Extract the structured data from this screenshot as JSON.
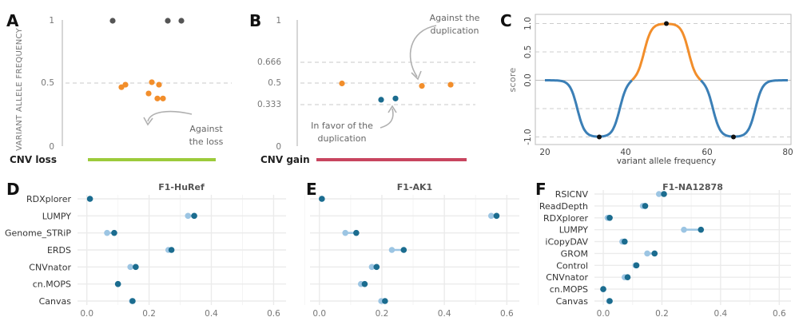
{
  "panel_labels": [
    "A",
    "B",
    "C",
    "D",
    "E",
    "F"
  ],
  "colors": {
    "orange": "#F28E2B",
    "gray_dot": "#555555",
    "green_bar": "#9CCB3B",
    "red_bar": "#C8455F",
    "blue_curve": "#3B7FB6",
    "dark_blue": "#1B6C8F",
    "light_blue": "#9CC5E3"
  },
  "panel_a": {
    "ylabel": "VARIANT ALLELE FREQUENCY",
    "ticks": [
      "1",
      "0.5",
      "0"
    ],
    "annotation": [
      "Against",
      "the loss"
    ],
    "bar_label": "CNV loss"
  },
  "panel_b": {
    "ticks": [
      "1",
      "0.666",
      "0.5",
      "0.333",
      "0"
    ],
    "annotation_top": [
      "Against the",
      "duplication"
    ],
    "annotation_bottom": [
      "In favor of the",
      "duplication"
    ],
    "bar_label": "CNV gain"
  },
  "panel_c": {
    "ylabel": "score",
    "xlabel": "variant allele frequency",
    "yticks": [
      "1.0",
      "0.5",
      "0.0",
      "-1.0"
    ],
    "xticks": [
      "20",
      "40",
      "60",
      "80"
    ]
  },
  "chart_data": [
    {
      "panel": "A",
      "type": "scatter",
      "ylim": [
        0,
        1
      ],
      "series": [
        {
          "color": "gray",
          "y": [
            1,
            1,
            1
          ]
        },
        {
          "color": "orange",
          "y": [
            0.47,
            0.49,
            0.51,
            0.49,
            0.42,
            0.38,
            0.38
          ]
        }
      ]
    },
    {
      "panel": "B",
      "type": "scatter",
      "ylim": [
        0,
        1
      ],
      "series": [
        {
          "color": "orange",
          "y": [
            0.5,
            0.48,
            0.49
          ]
        },
        {
          "color": "blue",
          "y": [
            0.37,
            0.38
          ]
        }
      ]
    },
    {
      "panel": "C",
      "type": "line",
      "xlim": [
        18,
        82
      ],
      "ylim": [
        -1.05,
        1.05
      ],
      "description_points": {
        "x": [
          33.3,
          50,
          66.7
        ],
        "y": [
          -1,
          1,
          -1
        ]
      }
    },
    {
      "panel": "D",
      "type": "dumbbell",
      "title": "F1-HuRef",
      "xlim": [
        -0.03,
        0.64
      ],
      "xticks": [
        "0.0",
        "0.2",
        "0.4",
        "0.6"
      ],
      "categories": [
        "RDXplorer",
        "LUMPY",
        "Genome_STRiP",
        "ERDS",
        "CNVnator",
        "cn.MOPS",
        "Canvas"
      ],
      "series": [
        {
          "color": "light",
          "values": [
            0.01,
            0.325,
            0.065,
            0.262,
            0.14,
            0.1,
            0.145
          ]
        },
        {
          "color": "dark",
          "values": [
            0.01,
            0.345,
            0.088,
            0.272,
            0.157,
            0.1,
            0.147
          ]
        }
      ]
    },
    {
      "panel": "E",
      "type": "dumbbell",
      "title": "F1-AK1",
      "xlim": [
        -0.03,
        0.64
      ],
      "xticks": [
        "0.0",
        "0.2",
        "0.4",
        "0.6"
      ],
      "categories": [
        "",
        "",
        "",
        "",
        "",
        "",
        ""
      ],
      "series": [
        {
          "color": "light",
          "values": [
            0.008,
            0.55,
            0.083,
            0.232,
            0.168,
            0.133,
            0.198
          ]
        },
        {
          "color": "dark",
          "values": [
            0.008,
            0.567,
            0.118,
            0.27,
            0.183,
            0.145,
            0.21
          ]
        }
      ]
    },
    {
      "panel": "F",
      "type": "dumbbell",
      "title": "F1-NA12878",
      "xlim": [
        -0.03,
        0.64
      ],
      "xticks": [
        "0.0",
        "0.2",
        "0.4",
        "0.6"
      ],
      "categories": [
        "RSICNV",
        "ReadDepth",
        "RDXplorer",
        "LUMPY",
        "iCopyDAV",
        "GROM",
        "Control",
        "CNVnator",
        "cn.MOPS",
        "Canvas"
      ],
      "series": [
        {
          "color": "light",
          "values": [
            0.19,
            0.135,
            0.015,
            0.275,
            0.065,
            0.15,
            0.11,
            0.073,
            0.0,
            0.02
          ]
        },
        {
          "color": "dark",
          "values": [
            0.207,
            0.143,
            0.022,
            0.333,
            0.073,
            0.175,
            0.113,
            0.083,
            0.0,
            0.022
          ]
        }
      ]
    }
  ]
}
